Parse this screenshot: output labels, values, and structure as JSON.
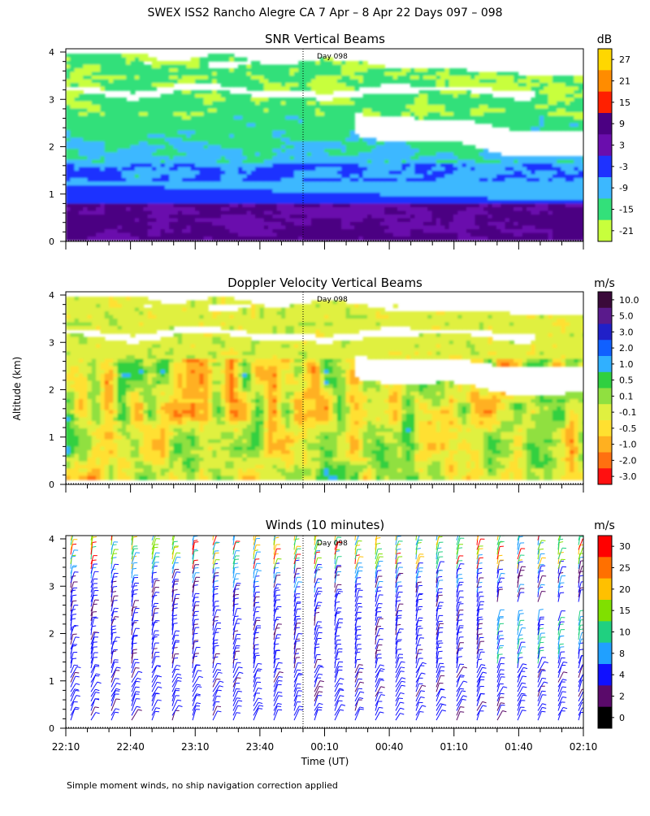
{
  "page": {
    "title": "SWEX ISS2 Rancho Alegre CA   7 Apr –  8 Apr 22 Days 097 – 098",
    "yaxis_label": "Altitude (km)",
    "xaxis_label": "Time (UT)",
    "footnote": "Simple moment winds, no ship navigation correction applied",
    "day_marker": "Day 098"
  },
  "chart_data": [
    {
      "type": "heatmap",
      "title": "SNR Vertical Beams",
      "colorbar_unit": "dB",
      "colorbar_ticks": [
        "27",
        "21",
        "15",
        "9",
        "3",
        "-3",
        "-9",
        "-15",
        "-21"
      ],
      "colorbar_colors": [
        "#ffd700",
        "#ff8c00",
        "#ff2000",
        "#4b0082",
        "#6a0dad",
        "#1e32ff",
        "#3cb8ff",
        "#33e07a",
        "#c8ff3c"
      ],
      "y_ticks": [
        "0",
        "1",
        "2",
        "3",
        "4"
      ],
      "ylim": [
        0,
        4
      ],
      "x_ticks": [
        "22:10",
        "22:40",
        "23:10",
        "23:40",
        "00:10",
        "00:40",
        "01:10",
        "01:40",
        "02:10"
      ],
      "day_marker_time": "00:00"
    },
    {
      "type": "heatmap",
      "title": "Doppler Velocity Vertical Beams",
      "colorbar_unit": "m/s",
      "colorbar_ticks": [
        "10.0",
        "5.0",
        "3.0",
        "2.0",
        "1.0",
        "0.5",
        "0.1",
        "-0.1",
        "-0.5",
        "-1.0",
        "-2.0",
        "-3.0"
      ],
      "colorbar_colors": [
        "#3a0a3a",
        "#5a1a8c",
        "#2020c8",
        "#1060ff",
        "#30b0ff",
        "#30d040",
        "#90e040",
        "#e0f040",
        "#ffe030",
        "#ffb020",
        "#ff7010",
        "#ff1010"
      ],
      "y_ticks": [
        "0",
        "1",
        "2",
        "3",
        "4"
      ],
      "ylim": [
        0,
        4
      ],
      "day_marker_time": "00:00"
    },
    {
      "type": "scatter",
      "title": "Winds (10 minutes)",
      "colorbar_unit": "m/s",
      "colorbar_ticks": [
        "30",
        "25",
        "20",
        "15",
        "10",
        "8",
        "4",
        "2",
        "0"
      ],
      "colorbar_colors": [
        "#ff0000",
        "#ff7000",
        "#ffc000",
        "#80e000",
        "#20d080",
        "#20a0ff",
        "#1010ff",
        "#5a0a6a",
        "#000000"
      ],
      "y_ticks": [
        "0",
        "1",
        "2",
        "3",
        "4"
      ],
      "ylim": [
        0,
        4
      ],
      "x_ticks": [
        "22:10",
        "22:40",
        "23:10",
        "23:40",
        "00:10",
        "00:40",
        "01:10",
        "01:40",
        "02:10"
      ],
      "day_marker_time": "00:00"
    }
  ]
}
